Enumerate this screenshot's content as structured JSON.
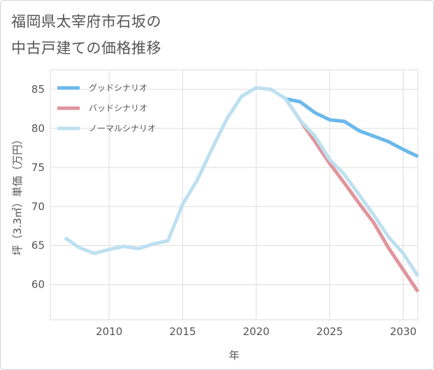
{
  "title": {
    "line1": "福岡県太宰府市石坂の",
    "line2": "中古戸建ての価格推移"
  },
  "chart_data": {
    "type": "line",
    "title": "福岡県太宰府市石坂の中古戸建ての価格推移",
    "xlabel": "年",
    "ylabel": "坪（3.3㎡）単価（万円）",
    "xlim": [
      2006,
      2031
    ],
    "ylim": [
      55.5,
      87.5
    ],
    "xticks": [
      2010,
      2015,
      2020,
      2025,
      2030
    ],
    "yticks": [
      60,
      65,
      70,
      75,
      80,
      85
    ],
    "grid": true,
    "legend_position": "top-left",
    "series": [
      {
        "name": "グッドシナリオ",
        "color": "#6bb8ea",
        "x": [
          2022,
          2023,
          2024,
          2025,
          2026,
          2027,
          2028,
          2029,
          2030,
          2031
        ],
        "y": [
          83.8,
          83.4,
          82.0,
          81.1,
          80.9,
          79.7,
          79.0,
          78.3,
          77.3,
          76.4
        ]
      },
      {
        "name": "バッドシナリオ",
        "color": "#e0959b",
        "x": [
          2022,
          2023,
          2024,
          2025,
          2026,
          2027,
          2028,
          2029,
          2030,
          2031
        ],
        "y": [
          83.8,
          81.0,
          78.3,
          75.5,
          73.0,
          70.4,
          67.9,
          64.7,
          61.9,
          59.1
        ]
      },
      {
        "name": "ノーマルシナリオ",
        "color": "#bde0f0",
        "x": [
          2007,
          2008,
          2009,
          2010,
          2011,
          2012,
          2013,
          2014,
          2015,
          2016,
          2017,
          2018,
          2019,
          2020,
          2021,
          2022,
          2023,
          2024,
          2025,
          2026,
          2027,
          2028,
          2029,
          2030,
          2031
        ],
        "y": [
          66.0,
          64.7,
          64.0,
          64.5,
          64.9,
          64.6,
          65.2,
          65.6,
          70.3,
          73.4,
          77.4,
          81.2,
          84.1,
          85.2,
          85.0,
          83.8,
          81.0,
          79.0,
          76.0,
          74.1,
          71.5,
          68.9,
          66.1,
          64.0,
          61.1
        ]
      }
    ]
  }
}
